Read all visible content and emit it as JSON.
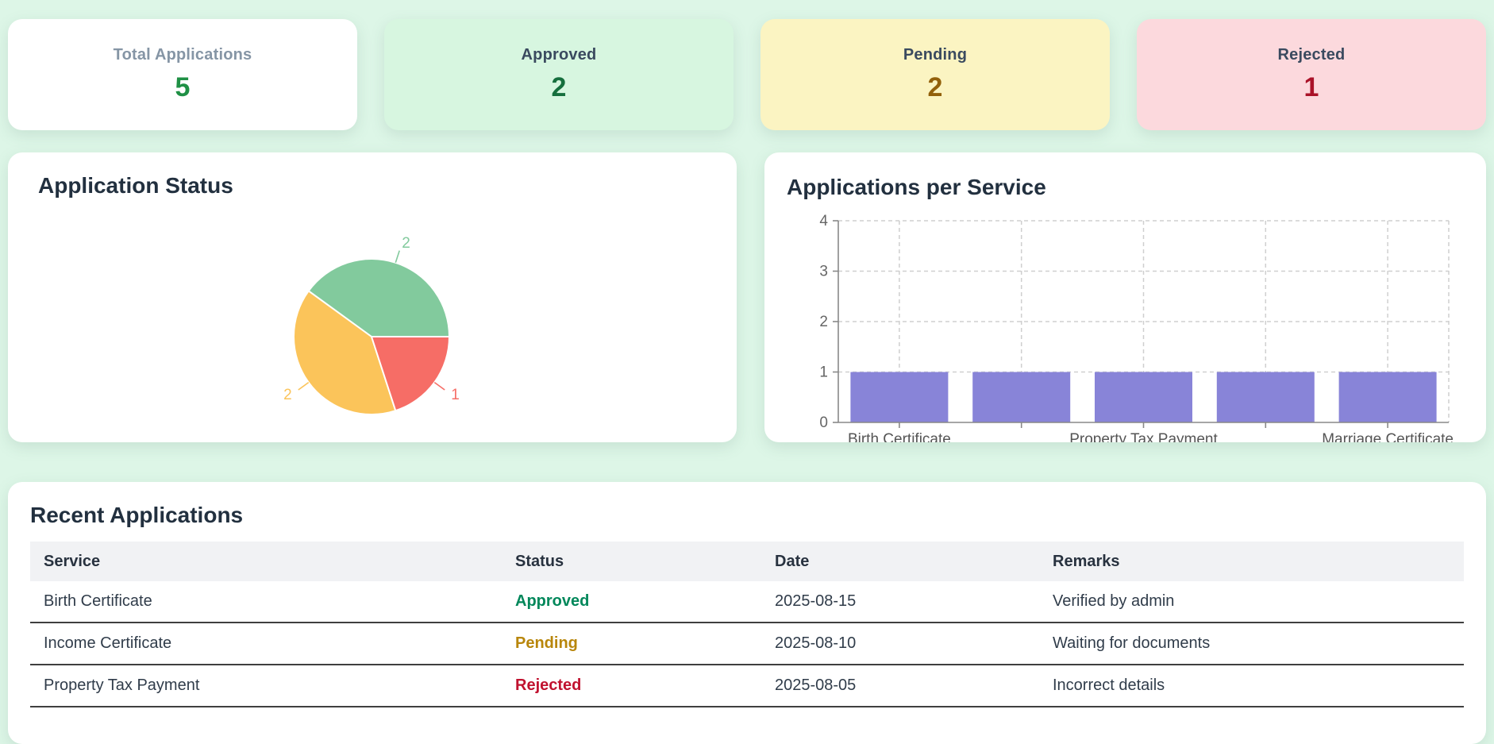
{
  "page": {
    "background": "#ddf6e7"
  },
  "stats": [
    {
      "label": "Total Applications",
      "value": "5",
      "bg": "#ffffff",
      "label_color": "#8595a5",
      "value_color": "#1f9045"
    },
    {
      "label": "Approved",
      "value": "2",
      "bg": "#d7f6e0",
      "label_color": "#3a4a5f",
      "value_color": "#156f3d"
    },
    {
      "label": "Pending",
      "value": "2",
      "bg": "#fbf4c2",
      "label_color": "#3a4a5f",
      "value_color": "#92600a"
    },
    {
      "label": "Rejected",
      "value": "1",
      "bg": "#fcd9dd",
      "label_color": "#3a4a5f",
      "value_color": "#aa1228"
    }
  ],
  "pie_card": {
    "title": "Application Status"
  },
  "bar_card": {
    "title": "Applications per Service"
  },
  "chart_data": [
    {
      "type": "pie",
      "title": "Application Status",
      "segments": [
        {
          "name": "Approved",
          "label": "2",
          "value": 2,
          "color": "#82ca9d"
        },
        {
          "name": "Pending",
          "label": "2",
          "value": 2,
          "color": "#fbc45a"
        },
        {
          "name": "Rejected",
          "label": "1",
          "value": 1,
          "color": "#f66d66"
        }
      ],
      "start_angle": 0,
      "direction": "counterclockwise",
      "labels_outside": true,
      "legend": "none"
    },
    {
      "type": "bar",
      "title": "Applications per Service",
      "categories": [
        "Birth Certificate",
        "",
        "Property Tax Payment",
        "",
        "Marriage Certificate"
      ],
      "values": [
        1,
        1,
        1,
        1,
        1
      ],
      "bar_color": "#8884d8",
      "ylim": [
        0,
        4
      ],
      "yticks": [
        0,
        1,
        2,
        3,
        4
      ],
      "grid": "dashed",
      "xlabel": "",
      "ylabel": ""
    }
  ],
  "table_card": {
    "title": "Recent Applications",
    "columns": [
      "Service",
      "Status",
      "Date",
      "Remarks"
    ],
    "rows": [
      {
        "service": "Birth Certificate",
        "status": "Approved",
        "status_color": "#00875a",
        "date": "2025-08-15",
        "remarks": "Verified by admin"
      },
      {
        "service": "Income Certificate",
        "status": "Pending",
        "status_color": "#b8860b",
        "date": "2025-08-10",
        "remarks": "Waiting for documents"
      },
      {
        "service": "Property Tax Payment",
        "status": "Rejected",
        "status_color": "#c0122f",
        "date": "2025-08-05",
        "remarks": "Incorrect details"
      }
    ]
  }
}
